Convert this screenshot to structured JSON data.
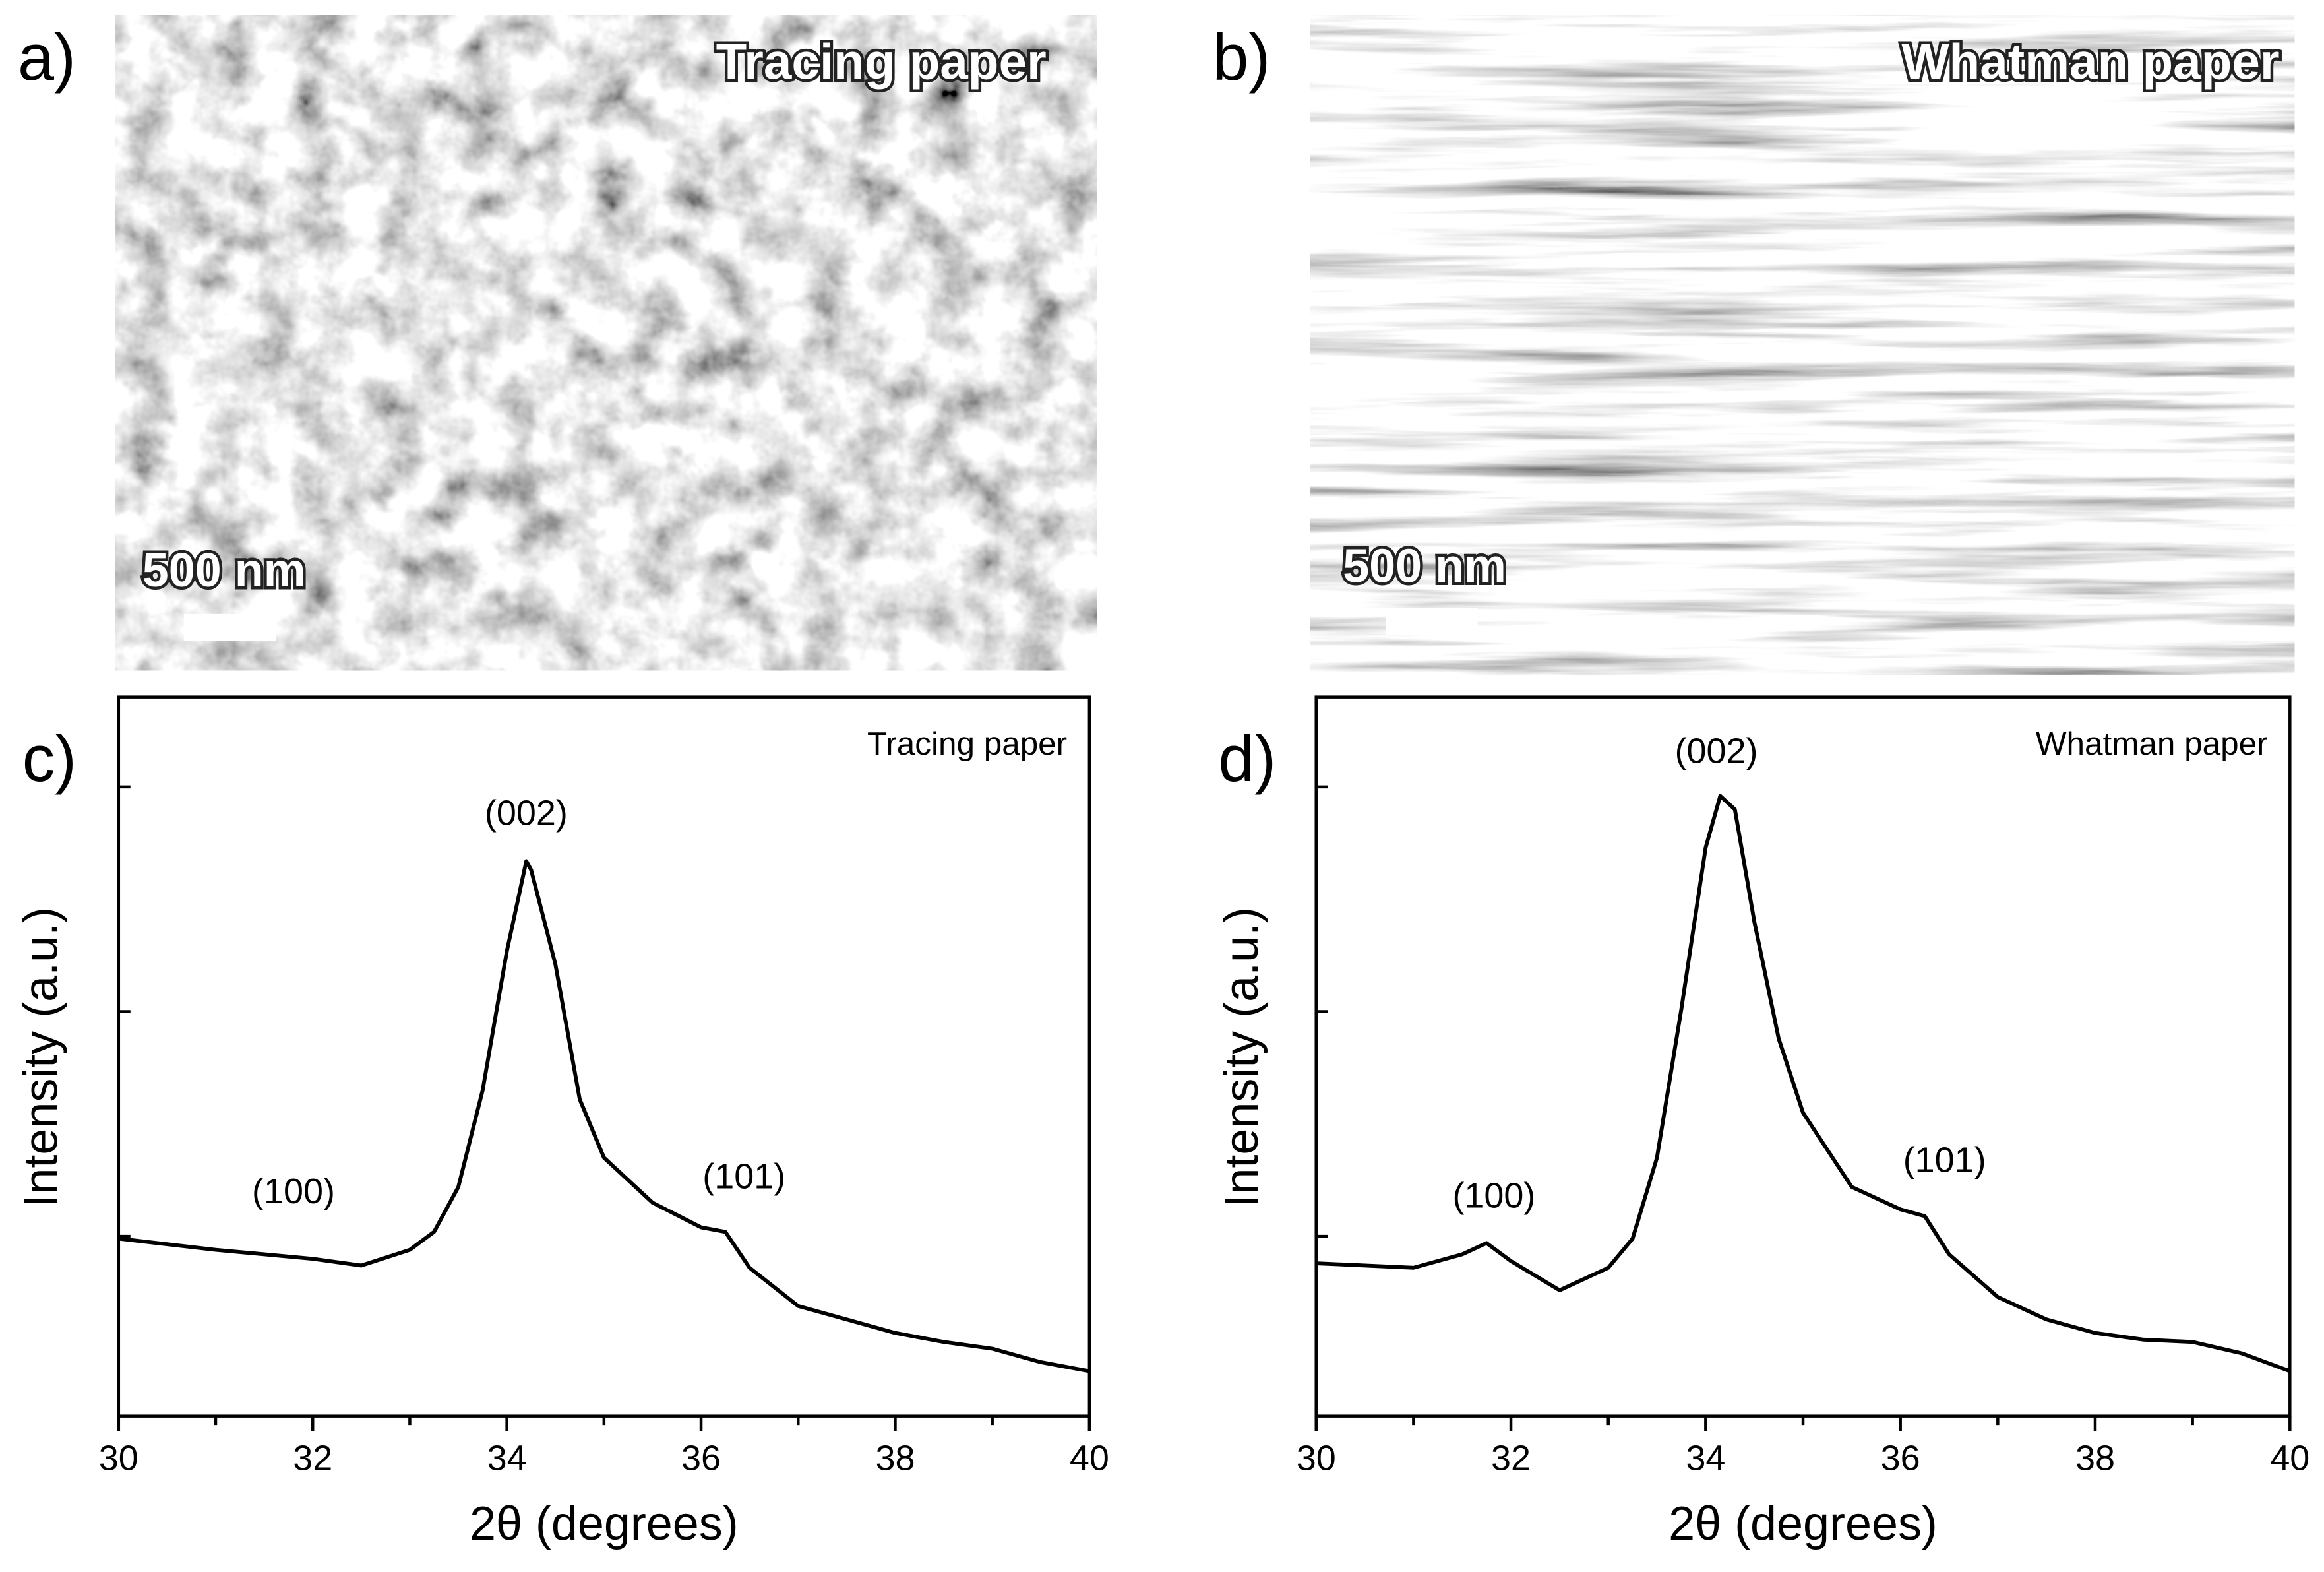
{
  "panels": [
    {
      "label": "a)",
      "caption": "Tracing paper",
      "scale": "500 nm"
    },
    {
      "label": "b)",
      "caption": "Whatman paper",
      "scale": "500 nm"
    }
  ],
  "chart_data": [
    {
      "type": "line",
      "panel_label": "c)",
      "title": "Tracing paper",
      "xlabel": "2θ (degrees)",
      "ylabel": "Intensity (a.u.)",
      "annotations": [
        "(100)",
        "(002)",
        "(101)"
      ],
      "x": [
        30,
        31,
        32,
        32.5,
        33,
        33.25,
        33.5,
        33.75,
        34,
        34.2,
        34.25,
        34.5,
        34.75,
        35,
        35.5,
        36,
        36.25,
        36.5,
        37,
        37.5,
        38,
        38.5,
        39,
        39.5,
        40
      ],
      "values": [
        0.99,
        0.94,
        0.9,
        0.87,
        0.94,
        1.02,
        1.22,
        1.65,
        2.27,
        2.67,
        2.63,
        2.21,
        1.61,
        1.35,
        1.15,
        1.04,
        1.02,
        0.86,
        0.69,
        0.63,
        0.57,
        0.53,
        0.5,
        0.44,
        0.4
      ],
      "color": "#000000",
      "xlim": [
        30,
        40
      ],
      "xticks": [
        30,
        32,
        34,
        36,
        38,
        40
      ],
      "ylim": [
        0.2,
        3.4
      ],
      "yticks": [
        1,
        2,
        3
      ]
    },
    {
      "type": "line",
      "panel_label": "d)",
      "title": "Whatman paper",
      "xlabel": "2θ (degrees)",
      "ylabel": "Intensity (a.u.)",
      "annotations": [
        "(100)",
        "(002)",
        "(101)"
      ],
      "x": [
        30,
        31,
        31.5,
        31.75,
        32,
        32.5,
        33,
        33.25,
        33.5,
        33.75,
        34,
        34.15,
        34.3,
        34.5,
        34.75,
        35,
        35.5,
        36,
        36.25,
        36.5,
        37,
        37.5,
        38,
        38.5,
        39,
        39.5,
        40
      ],
      "values": [
        0.88,
        0.86,
        0.92,
        0.97,
        0.89,
        0.76,
        0.86,
        0.99,
        1.35,
        2.01,
        2.73,
        2.96,
        2.9,
        2.4,
        1.88,
        1.55,
        1.22,
        1.12,
        1.09,
        0.92,
        0.73,
        0.63,
        0.57,
        0.54,
        0.53,
        0.48,
        0.4
      ],
      "color": "#000000",
      "xlim": [
        30,
        40
      ],
      "xticks": [
        30,
        32,
        34,
        36,
        38,
        40
      ],
      "ylim": [
        0.2,
        3.4
      ],
      "yticks": [
        1,
        2,
        3
      ]
    }
  ]
}
